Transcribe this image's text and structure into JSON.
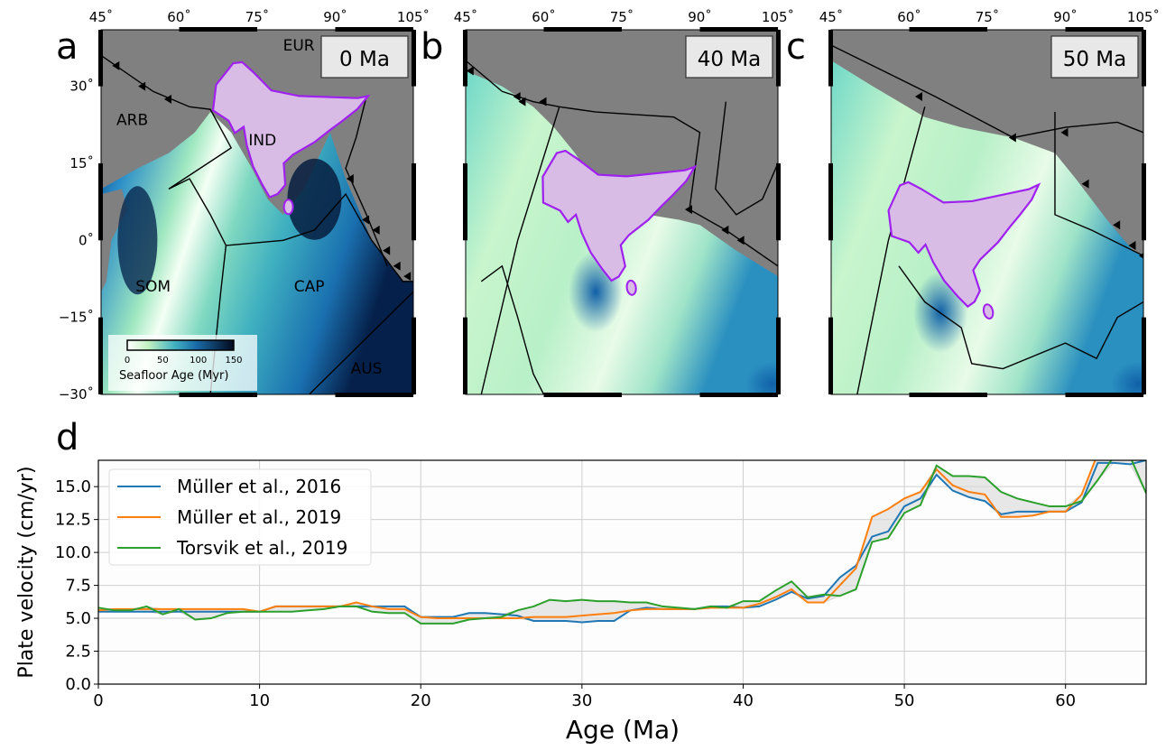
{
  "maps": {
    "lon_ticks": [
      "45˚",
      "60˚",
      "75˚",
      "90˚",
      "105˚"
    ],
    "lat_ticks": [
      "30˚",
      "15˚",
      "0˚",
      "−15˚",
      "−30˚"
    ],
    "panels": [
      {
        "letter": "a",
        "age_label": "0 Ma",
        "plate_labels": [
          "EUR",
          "ARB",
          "IND",
          "SOM",
          "CAP",
          "AUS"
        ]
      },
      {
        "letter": "b",
        "age_label": "40 Ma",
        "plate_labels": []
      },
      {
        "letter": "c",
        "age_label": "50 Ma",
        "plate_labels": []
      }
    ],
    "colorbar": {
      "label": "Seafloor Age (Myr)",
      "ticks": [
        "0",
        "50",
        "100",
        "150"
      ],
      "range": [
        0,
        150
      ]
    },
    "colors": {
      "continent": "#808080",
      "india_fill": "#d8bce6",
      "india_outline": "#a020f0",
      "boundary": "#000000"
    }
  },
  "chart_data": {
    "letter": "d",
    "type": "line",
    "xlabel": "Age (Ma)",
    "ylabel": "Plate velocity (cm/yr)",
    "xlim": [
      0,
      65
    ],
    "ylim": [
      0,
      17
    ],
    "xticks": [
      0,
      10,
      20,
      30,
      40,
      50,
      60
    ],
    "yticks": [
      "0.0",
      "2.5",
      "5.0",
      "7.5",
      "10.0",
      "12.5",
      "15.0"
    ],
    "grid": true,
    "legend_position": "top-left",
    "shaded_envelope": true,
    "x": [
      0,
      1,
      2,
      3,
      4,
      5,
      6,
      7,
      8,
      9,
      10,
      11,
      12,
      13,
      14,
      15,
      16,
      17,
      18,
      19,
      20,
      21,
      22,
      23,
      24,
      25,
      26,
      27,
      28,
      29,
      30,
      31,
      32,
      33,
      34,
      35,
      36,
      37,
      38,
      39,
      40,
      41,
      42,
      43,
      44,
      45,
      46,
      47,
      48,
      49,
      50,
      51,
      52,
      53,
      54,
      55,
      56,
      57,
      58,
      59,
      60,
      61,
      62,
      63,
      64,
      65
    ],
    "series": [
      {
        "name": "Müller et al., 2016",
        "color": "#1f77b4",
        "values": [
          5.5,
          5.5,
          5.5,
          5.5,
          5.5,
          5.5,
          5.5,
          5.5,
          5.5,
          5.5,
          5.5,
          5.9,
          5.9,
          5.9,
          5.9,
          5.9,
          5.9,
          5.9,
          5.9,
          5.9,
          5.1,
          5.1,
          5.1,
          5.4,
          5.4,
          5.3,
          5.2,
          4.8,
          4.8,
          4.8,
          4.7,
          4.8,
          4.8,
          5.6,
          5.8,
          5.7,
          5.7,
          5.7,
          5.9,
          5.9,
          5.8,
          5.9,
          6.4,
          7.0,
          6.5,
          6.7,
          8.1,
          9.0,
          11.2,
          11.6,
          13.5,
          14.1,
          15.9,
          14.7,
          14.2,
          13.9,
          12.9,
          13.1,
          13.1,
          13.1,
          13.1,
          13.8,
          16.8,
          16.8,
          16.7,
          17.0
        ]
      },
      {
        "name": "Müller et al., 2019",
        "color": "#ff7f0e",
        "values": [
          5.6,
          5.7,
          5.7,
          5.7,
          5.7,
          5.7,
          5.7,
          5.7,
          5.7,
          5.7,
          5.5,
          5.9,
          5.9,
          5.9,
          5.9,
          5.9,
          6.2,
          5.9,
          5.7,
          5.7,
          5.1,
          5.0,
          5.0,
          5.0,
          5.0,
          5.0,
          5.0,
          5.1,
          5.1,
          5.1,
          5.2,
          5.3,
          5.4,
          5.6,
          5.7,
          5.7,
          5.7,
          5.7,
          5.8,
          5.8,
          5.8,
          6.1,
          6.6,
          7.2,
          6.2,
          6.2,
          7.5,
          8.8,
          12.7,
          13.3,
          14.1,
          14.6,
          16.3,
          15.1,
          14.6,
          14.4,
          12.7,
          12.7,
          12.8,
          13.1,
          13.1,
          14.4,
          17.5,
          18.0,
          18.0,
          18.0
        ]
      },
      {
        "name": "Torsvik et al., 2019",
        "color": "#2ca02c",
        "values": [
          5.8,
          5.6,
          5.6,
          5.9,
          5.3,
          5.7,
          4.9,
          5.0,
          5.4,
          5.5,
          5.5,
          5.5,
          5.5,
          5.6,
          5.7,
          5.9,
          5.9,
          5.5,
          5.4,
          5.4,
          4.6,
          4.6,
          4.6,
          4.9,
          5.0,
          5.1,
          5.6,
          5.9,
          6.4,
          6.3,
          6.4,
          6.3,
          6.3,
          6.2,
          6.2,
          5.9,
          5.8,
          5.7,
          5.9,
          5.8,
          6.3,
          6.3,
          7.1,
          7.8,
          6.6,
          6.8,
          6.7,
          7.2,
          10.8,
          11.1,
          13.0,
          13.6,
          16.6,
          15.8,
          15.8,
          15.7,
          14.6,
          14.1,
          13.8,
          13.5,
          13.5,
          13.9,
          15.5,
          17.3,
          17.3,
          14.5
        ]
      }
    ]
  }
}
